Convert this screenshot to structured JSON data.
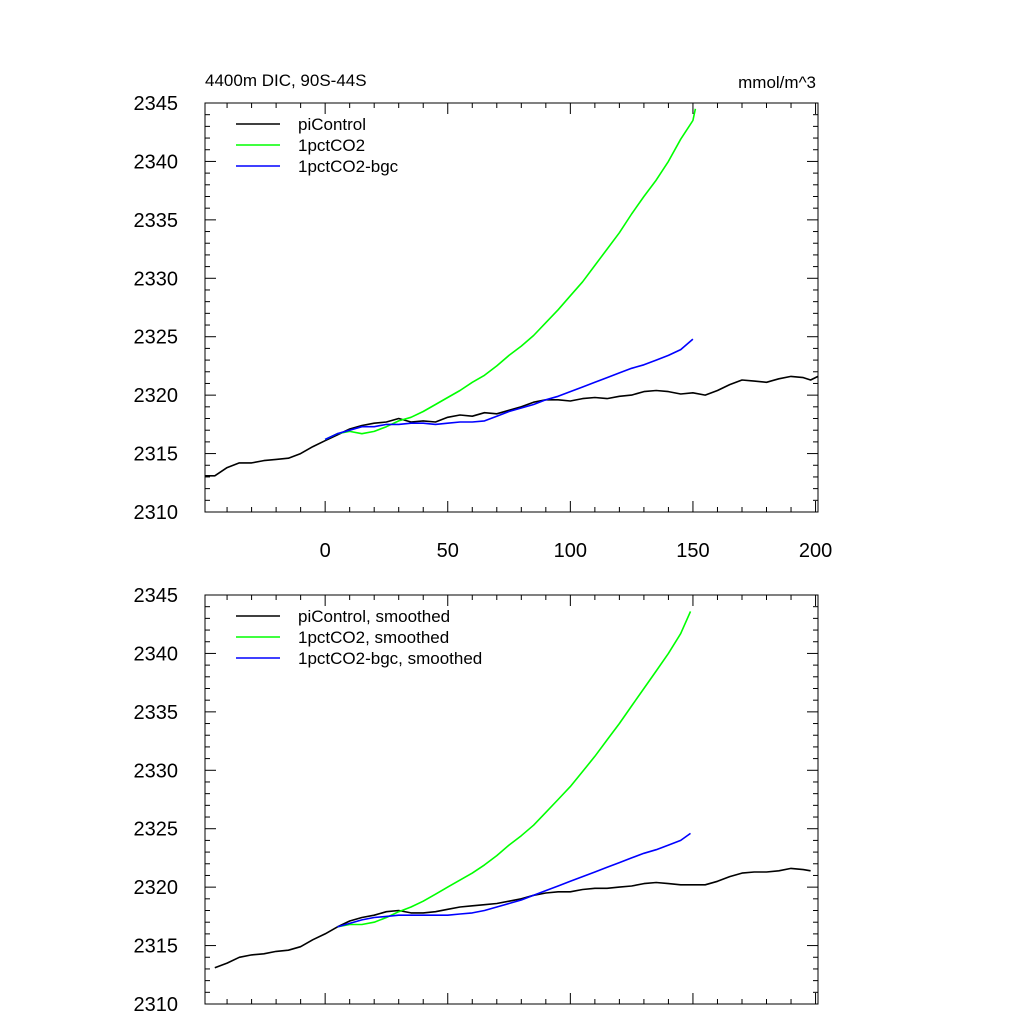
{
  "chart_data": [
    {
      "type": "line",
      "title": "4400m DIC, 90S-44S",
      "units": "mmol/m^3",
      "xlim": [
        -49,
        201
      ],
      "ylim": [
        2310,
        2345
      ],
      "xticks": [
        0,
        50,
        100,
        150,
        200
      ],
      "yticks": [
        2310,
        2315,
        2320,
        2325,
        2330,
        2335,
        2340,
        2345
      ],
      "x_tick_labels_shown": true,
      "legend": "top-left",
      "grid": false,
      "series": [
        {
          "name": "piControl",
          "color": "#000000",
          "points": [
            [
              -49,
              2313.1
            ],
            [
              -45,
              2313.1
            ],
            [
              -40,
              2313.8
            ],
            [
              -35,
              2314.2
            ],
            [
              -30,
              2314.2
            ],
            [
              -25,
              2314.4
            ],
            [
              -20,
              2314.5
            ],
            [
              -15,
              2314.6
            ],
            [
              -10,
              2315.0
            ],
            [
              -5,
              2315.6
            ],
            [
              0,
              2316.1
            ],
            [
              5,
              2316.6
            ],
            [
              10,
              2317.1
            ],
            [
              15,
              2317.4
            ],
            [
              20,
              2317.6
            ],
            [
              25,
              2317.7
            ],
            [
              30,
              2318.0
            ],
            [
              35,
              2317.7
            ],
            [
              40,
              2317.8
            ],
            [
              45,
              2317.7
            ],
            [
              50,
              2318.1
            ],
            [
              55,
              2318.3
            ],
            [
              60,
              2318.2
            ],
            [
              65,
              2318.5
            ],
            [
              70,
              2318.4
            ],
            [
              75,
              2318.7
            ],
            [
              80,
              2319.0
            ],
            [
              85,
              2319.4
            ],
            [
              90,
              2319.6
            ],
            [
              95,
              2319.6
            ],
            [
              100,
              2319.5
            ],
            [
              105,
              2319.7
            ],
            [
              110,
              2319.8
            ],
            [
              115,
              2319.7
            ],
            [
              120,
              2319.9
            ],
            [
              125,
              2320.0
            ],
            [
              130,
              2320.3
            ],
            [
              135,
              2320.4
            ],
            [
              140,
              2320.3
            ],
            [
              145,
              2320.1
            ],
            [
              150,
              2320.2
            ],
            [
              155,
              2320.0
            ],
            [
              160,
              2320.4
            ],
            [
              165,
              2320.9
            ],
            [
              170,
              2321.3
            ],
            [
              175,
              2321.2
            ],
            [
              180,
              2321.1
            ],
            [
              185,
              2321.4
            ],
            [
              190,
              2321.6
            ],
            [
              195,
              2321.5
            ],
            [
              198,
              2321.3
            ],
            [
              201,
              2321.6
            ]
          ]
        },
        {
          "name": "1pctCO2",
          "color": "#00ff00",
          "points": [
            [
              0,
              2316.2
            ],
            [
              5,
              2316.7
            ],
            [
              10,
              2316.9
            ],
            [
              15,
              2316.7
            ],
            [
              20,
              2316.9
            ],
            [
              25,
              2317.3
            ],
            [
              30,
              2317.8
            ],
            [
              35,
              2318.1
            ],
            [
              40,
              2318.6
            ],
            [
              45,
              2319.2
            ],
            [
              50,
              2319.8
            ],
            [
              55,
              2320.4
            ],
            [
              60,
              2321.1
            ],
            [
              65,
              2321.7
            ],
            [
              70,
              2322.5
            ],
            [
              75,
              2323.4
            ],
            [
              80,
              2324.2
            ],
            [
              85,
              2325.1
            ],
            [
              90,
              2326.2
            ],
            [
              95,
              2327.3
            ],
            [
              100,
              2328.5
            ],
            [
              105,
              2329.7
            ],
            [
              110,
              2331.1
            ],
            [
              115,
              2332.5
            ],
            [
              120,
              2333.9
            ],
            [
              125,
              2335.5
            ],
            [
              130,
              2337.0
            ],
            [
              135,
              2338.4
            ],
            [
              140,
              2340.0
            ],
            [
              145,
              2341.9
            ],
            [
              150,
              2343.5
            ],
            [
              151,
              2344.5
            ]
          ]
        },
        {
          "name": "1pctCO2-bgc",
          "color": "#0000ff",
          "points": [
            [
              0,
              2316.2
            ],
            [
              5,
              2316.7
            ],
            [
              10,
              2317.0
            ],
            [
              15,
              2317.3
            ],
            [
              20,
              2317.3
            ],
            [
              25,
              2317.5
            ],
            [
              30,
              2317.5
            ],
            [
              35,
              2317.6
            ],
            [
              40,
              2317.6
            ],
            [
              45,
              2317.5
            ],
            [
              50,
              2317.6
            ],
            [
              55,
              2317.7
            ],
            [
              60,
              2317.7
            ],
            [
              65,
              2317.8
            ],
            [
              70,
              2318.2
            ],
            [
              75,
              2318.6
            ],
            [
              80,
              2318.9
            ],
            [
              85,
              2319.2
            ],
            [
              90,
              2319.6
            ],
            [
              95,
              2319.9
            ],
            [
              100,
              2320.3
            ],
            [
              105,
              2320.7
            ],
            [
              110,
              2321.1
            ],
            [
              115,
              2321.5
            ],
            [
              120,
              2321.9
            ],
            [
              125,
              2322.3
            ],
            [
              130,
              2322.6
            ],
            [
              135,
              2323.0
            ],
            [
              140,
              2323.4
            ],
            [
              145,
              2323.9
            ],
            [
              150,
              2324.8
            ]
          ]
        }
      ]
    },
    {
      "type": "line",
      "title": "",
      "units": "",
      "xlim": [
        -49,
        201
      ],
      "ylim": [
        2310,
        2345
      ],
      "xticks": [
        0,
        50,
        100,
        150,
        200
      ],
      "yticks": [
        2310,
        2315,
        2320,
        2325,
        2330,
        2335,
        2340,
        2345
      ],
      "x_tick_labels_shown": false,
      "legend": "top-left",
      "grid": false,
      "series": [
        {
          "name": "piControl, smoothed",
          "color": "#000000",
          "points": [
            [
              -45,
              2313.1
            ],
            [
              -40,
              2313.5
            ],
            [
              -35,
              2314.0
            ],
            [
              -30,
              2314.2
            ],
            [
              -25,
              2314.3
            ],
            [
              -20,
              2314.5
            ],
            [
              -15,
              2314.6
            ],
            [
              -10,
              2314.9
            ],
            [
              -5,
              2315.5
            ],
            [
              0,
              2316.0
            ],
            [
              5,
              2316.6
            ],
            [
              10,
              2317.1
            ],
            [
              15,
              2317.4
            ],
            [
              20,
              2317.6
            ],
            [
              25,
              2317.9
            ],
            [
              30,
              2318.0
            ],
            [
              35,
              2317.8
            ],
            [
              40,
              2317.8
            ],
            [
              45,
              2317.9
            ],
            [
              50,
              2318.1
            ],
            [
              55,
              2318.3
            ],
            [
              60,
              2318.4
            ],
            [
              65,
              2318.5
            ],
            [
              70,
              2318.6
            ],
            [
              75,
              2318.8
            ],
            [
              80,
              2319.0
            ],
            [
              85,
              2319.3
            ],
            [
              90,
              2319.5
            ],
            [
              95,
              2319.6
            ],
            [
              100,
              2319.6
            ],
            [
              105,
              2319.8
            ],
            [
              110,
              2319.9
            ],
            [
              115,
              2319.9
            ],
            [
              120,
              2320.0
            ],
            [
              125,
              2320.1
            ],
            [
              130,
              2320.3
            ],
            [
              135,
              2320.4
            ],
            [
              140,
              2320.3
            ],
            [
              145,
              2320.2
            ],
            [
              150,
              2320.2
            ],
            [
              155,
              2320.2
            ],
            [
              160,
              2320.5
            ],
            [
              165,
              2320.9
            ],
            [
              170,
              2321.2
            ],
            [
              175,
              2321.3
            ],
            [
              180,
              2321.3
            ],
            [
              185,
              2321.4
            ],
            [
              190,
              2321.6
            ],
            [
              195,
              2321.5
            ],
            [
              198,
              2321.4
            ]
          ]
        },
        {
          "name": "1pctCO2, smoothed",
          "color": "#00ff00",
          "points": [
            [
              5,
              2316.6
            ],
            [
              10,
              2316.8
            ],
            [
              15,
              2316.8
            ],
            [
              20,
              2317.0
            ],
            [
              25,
              2317.4
            ],
            [
              30,
              2317.9
            ],
            [
              35,
              2318.3
            ],
            [
              40,
              2318.8
            ],
            [
              45,
              2319.4
            ],
            [
              50,
              2320.0
            ],
            [
              55,
              2320.6
            ],
            [
              60,
              2321.2
            ],
            [
              65,
              2321.9
            ],
            [
              70,
              2322.7
            ],
            [
              75,
              2323.6
            ],
            [
              80,
              2324.4
            ],
            [
              85,
              2325.3
            ],
            [
              90,
              2326.4
            ],
            [
              95,
              2327.5
            ],
            [
              100,
              2328.6
            ],
            [
              105,
              2329.9
            ],
            [
              110,
              2331.2
            ],
            [
              115,
              2332.6
            ],
            [
              120,
              2334.0
            ],
            [
              125,
              2335.5
            ],
            [
              130,
              2337.0
            ],
            [
              135,
              2338.5
            ],
            [
              140,
              2340.0
            ],
            [
              145,
              2341.7
            ],
            [
              149,
              2343.6
            ]
          ]
        },
        {
          "name": "1pctCO2-bgc, smoothed",
          "color": "#0000ff",
          "points": [
            [
              5,
              2316.6
            ],
            [
              10,
              2316.9
            ],
            [
              15,
              2317.2
            ],
            [
              20,
              2317.4
            ],
            [
              25,
              2317.5
            ],
            [
              30,
              2317.6
            ],
            [
              35,
              2317.6
            ],
            [
              40,
              2317.6
            ],
            [
              45,
              2317.6
            ],
            [
              50,
              2317.6
            ],
            [
              55,
              2317.7
            ],
            [
              60,
              2317.8
            ],
            [
              65,
              2318.0
            ],
            [
              70,
              2318.3
            ],
            [
              75,
              2318.6
            ],
            [
              80,
              2318.9
            ],
            [
              85,
              2319.3
            ],
            [
              90,
              2319.7
            ],
            [
              95,
              2320.1
            ],
            [
              100,
              2320.5
            ],
            [
              105,
              2320.9
            ],
            [
              110,
              2321.3
            ],
            [
              115,
              2321.7
            ],
            [
              120,
              2322.1
            ],
            [
              125,
              2322.5
            ],
            [
              130,
              2322.9
            ],
            [
              135,
              2323.2
            ],
            [
              140,
              2323.6
            ],
            [
              145,
              2324.0
            ],
            [
              149,
              2324.6
            ]
          ]
        }
      ]
    }
  ]
}
